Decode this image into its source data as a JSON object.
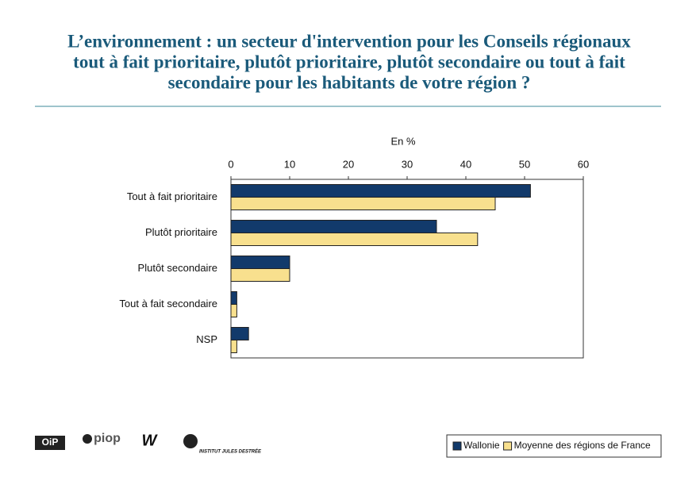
{
  "chart_data": {
    "type": "hbar",
    "title": [
      "L’environnement : un secteur d'intervention pour les Conseils régionaux",
      "tout à fait prioritaire, plutôt prioritaire, plutôt secondaire ou tout à fait",
      "secondaire pour les habitants de votre région ?"
    ],
    "x_label": "En %",
    "categories": [
      "Tout à fait prioritaire",
      "Plutôt prioritaire",
      "Plutôt secondaire",
      "Tout à fait secondaire",
      "NSP"
    ],
    "series": [
      {
        "name": "Wallonie",
        "color": "#123a6b",
        "values": [
          51,
          35,
          10,
          1,
          3
        ]
      },
      {
        "name": "Moyenne des régions de France",
        "color": "#f8e08e",
        "values": [
          45,
          42,
          10,
          1,
          1
        ]
      }
    ],
    "xlim": [
      0,
      60
    ],
    "xticks": [
      0,
      10,
      20,
      30,
      40,
      50,
      60
    ],
    "grid": false,
    "legend": "bottom-right"
  },
  "logos": [
    "OiP",
    "piop",
    "INSTITUT JULES DESTRÉE"
  ]
}
